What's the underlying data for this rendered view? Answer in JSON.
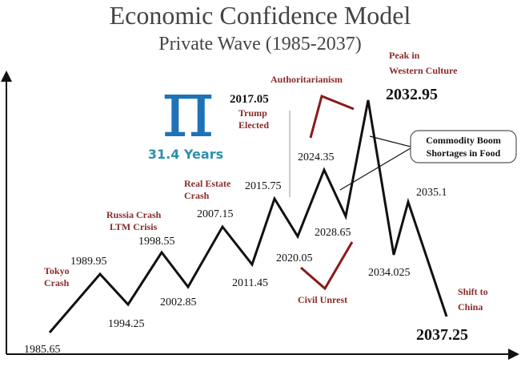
{
  "header": {
    "title": "Economic Confidence Model",
    "subtitle": "Private Wave (1985-2037)"
  },
  "pi": {
    "symbol": "π",
    "caption": "31.4 Years"
  },
  "points": [
    "1985.65",
    "1989.95",
    "1994.25",
    "1998.55",
    "2002.85",
    "2007.15",
    "2011.45",
    "2015.75",
    "2020.05",
    "2024.35",
    "2028.65",
    "2032.95",
    "2034.025",
    "2035.1",
    "2037.25"
  ],
  "marker": "2017.05",
  "events": {
    "tokyo": [
      "Tokyo",
      "Crash"
    ],
    "russia": [
      "Russia Crash",
      "LTM Crisis"
    ],
    "real_estate": [
      "Real Estate",
      "Crash"
    ],
    "trump": [
      "Trump",
      "Elected"
    ],
    "authoritarianism": "Authoritarianism",
    "peak": [
      "Peak in",
      "Western Culture"
    ],
    "civil_unrest": "Civil Unrest",
    "shift": [
      "Shift to",
      "China"
    ]
  },
  "callout": [
    "Commodity Boom",
    "Shortages in Food"
  ]
}
